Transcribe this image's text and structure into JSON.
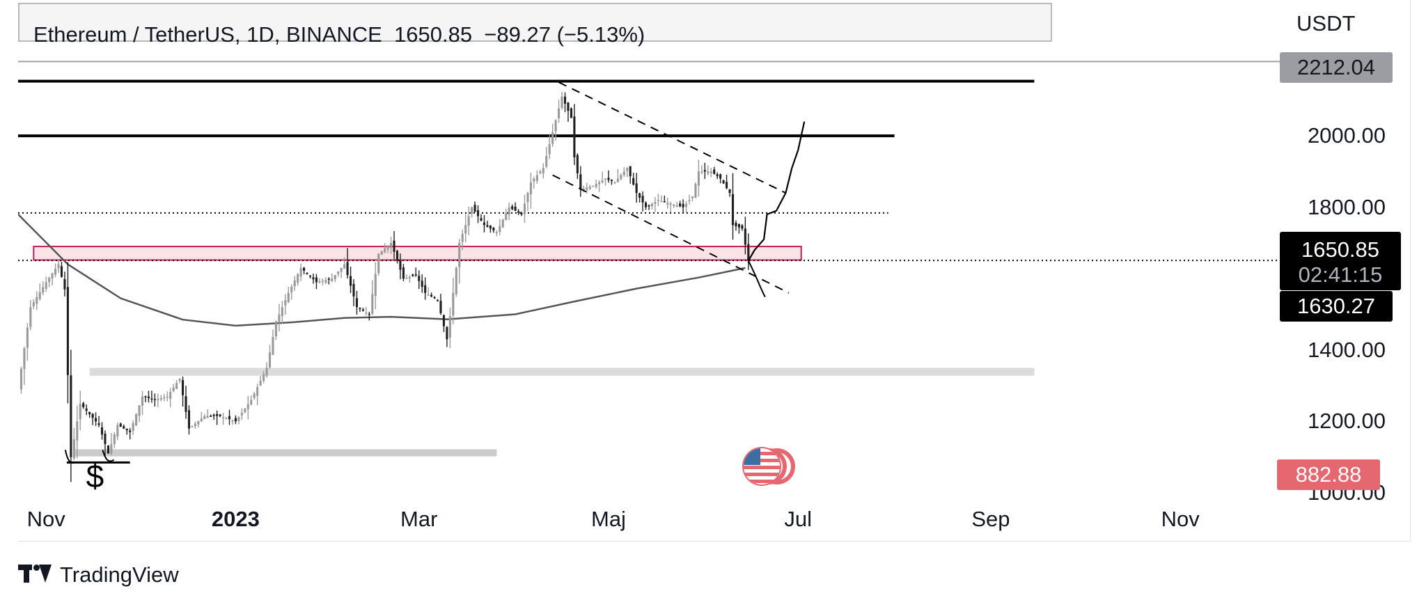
{
  "header": {
    "legend_text": "Ethereum / TetherUS, 1D, BINANCE  1650.85  −89.27 (−5.13%)"
  },
  "chart_data": {
    "type": "candlestick",
    "title": "",
    "xlabel": "",
    "ylabel": "",
    "unit": "USDT",
    "ylim": [
      957,
      2244
    ],
    "x_range": [
      "2022-10-23",
      "2023-12-03"
    ],
    "x_ticks": [
      {
        "date": "2022-11-01",
        "label": "Nov",
        "bold": false
      },
      {
        "date": "2023-01-01",
        "label": "2023",
        "bold": true
      },
      {
        "date": "2023-03-01",
        "label": "Mar",
        "bold": false
      },
      {
        "date": "2023-05-01",
        "label": "Maj",
        "bold": false
      },
      {
        "date": "2023-07-01",
        "label": "Jul",
        "bold": false
      },
      {
        "date": "2023-09-01",
        "label": "Sep",
        "bold": false
      },
      {
        "date": "2023-11-01",
        "label": "Nov",
        "bold": false
      }
    ],
    "y_ticks": [
      {
        "value": 1200,
        "label": "1200.00"
      },
      {
        "value": 1400,
        "label": "1400.00"
      },
      {
        "value": 1800,
        "label": "1800.00"
      },
      {
        "value": 2000,
        "label": "2000.00"
      },
      {
        "value": 1000,
        "label": "1000.00"
      }
    ],
    "price_tags": [
      {
        "value": 2212.04,
        "label": "2212.04",
        "kind": "grey"
      },
      {
        "value": 1650.85,
        "label": "1650.85",
        "countdown": "02:41:15",
        "kind": "last"
      },
      {
        "value": 1630.27,
        "label": "1630.27",
        "kind": "black"
      },
      {
        "value": 882.88,
        "label": "882.88",
        "kind": "red"
      }
    ],
    "price_path": [
      [
        "2022-10-23",
        1290
      ],
      [
        "2022-10-27",
        1520
      ],
      [
        "2022-11-01",
        1590
      ],
      [
        "2022-11-05",
        1640
      ],
      [
        "2022-11-07",
        1570
      ],
      [
        "2022-11-08",
        1330
      ],
      [
        "2022-11-09",
        1100
      ],
      [
        "2022-11-12",
        1250
      ],
      [
        "2022-11-15",
        1220
      ],
      [
        "2022-11-18",
        1190
      ],
      [
        "2022-11-21",
        1110
      ],
      [
        "2022-11-24",
        1190
      ],
      [
        "2022-11-28",
        1170
      ],
      [
        "2022-12-02",
        1270
      ],
      [
        "2022-12-06",
        1260
      ],
      [
        "2022-12-10",
        1270
      ],
      [
        "2022-12-14",
        1320
      ],
      [
        "2022-12-17",
        1180
      ],
      [
        "2022-12-22",
        1215
      ],
      [
        "2022-12-27",
        1215
      ],
      [
        "2023-01-01",
        1200
      ],
      [
        "2023-01-06",
        1260
      ],
      [
        "2023-01-11",
        1350
      ],
      [
        "2023-01-14",
        1480
      ],
      [
        "2023-01-18",
        1560
      ],
      [
        "2023-01-22",
        1630
      ],
      [
        "2023-01-27",
        1590
      ],
      [
        "2023-02-01",
        1600
      ],
      [
        "2023-02-05",
        1640
      ],
      [
        "2023-02-09",
        1520
      ],
      [
        "2023-02-13",
        1500
      ],
      [
        "2023-02-16",
        1670
      ],
      [
        "2023-02-20",
        1700
      ],
      [
        "2023-02-24",
        1600
      ],
      [
        "2023-02-28",
        1610
      ],
      [
        "2023-03-03",
        1560
      ],
      [
        "2023-03-07",
        1540
      ],
      [
        "2023-03-10",
        1430
      ],
      [
        "2023-03-12",
        1560
      ],
      [
        "2023-03-14",
        1700
      ],
      [
        "2023-03-18",
        1800
      ],
      [
        "2023-03-22",
        1750
      ],
      [
        "2023-03-26",
        1730
      ],
      [
        "2023-03-30",
        1800
      ],
      [
        "2023-04-03",
        1780
      ],
      [
        "2023-04-06",
        1870
      ],
      [
        "2023-04-10",
        1910
      ],
      [
        "2023-04-13",
        2010
      ],
      [
        "2023-04-16",
        2110
      ],
      [
        "2023-04-19",
        2050
      ],
      [
        "2023-04-20",
        1940
      ],
      [
        "2023-04-22",
        1850
      ],
      [
        "2023-04-26",
        1860
      ],
      [
        "2023-04-30",
        1880
      ],
      [
        "2023-05-03",
        1870
      ],
      [
        "2023-05-07",
        1910
      ],
      [
        "2023-05-10",
        1840
      ],
      [
        "2023-05-13",
        1800
      ],
      [
        "2023-05-17",
        1820
      ],
      [
        "2023-05-21",
        1810
      ],
      [
        "2023-05-25",
        1800
      ],
      [
        "2023-05-28",
        1830
      ],
      [
        "2023-05-30",
        1900
      ],
      [
        "2023-06-03",
        1900
      ],
      [
        "2023-06-06",
        1880
      ],
      [
        "2023-06-09",
        1840
      ],
      [
        "2023-06-10",
        1750
      ],
      [
        "2023-06-13",
        1740
      ],
      [
        "2023-06-15",
        1650
      ]
    ],
    "moving_average": [
      [
        "2022-10-23",
        1780
      ],
      [
        "2022-11-08",
        1640
      ],
      [
        "2022-11-25",
        1545
      ],
      [
        "2022-12-15",
        1485
      ],
      [
        "2023-01-01",
        1468
      ],
      [
        "2023-01-20",
        1478
      ],
      [
        "2023-02-05",
        1490
      ],
      [
        "2023-02-20",
        1493
      ],
      [
        "2023-03-10",
        1486
      ],
      [
        "2023-04-01",
        1500
      ],
      [
        "2023-04-20",
        1536
      ],
      [
        "2023-05-10",
        1572
      ],
      [
        "2023-05-30",
        1603
      ],
      [
        "2023-06-14",
        1630
      ]
    ],
    "horizontal_levels": [
      {
        "value": 2153,
        "style": "solid-bold",
        "from": "2022-10-23",
        "to": "2023-09-15"
      },
      {
        "value": 2000,
        "style": "solid-bold",
        "from": "2022-10-23",
        "to": "2023-08-01"
      },
      {
        "value": 1784,
        "style": "dotted",
        "from": "2022-10-23",
        "to": "2023-07-30"
      },
      {
        "value": 1651,
        "style": "dotted",
        "from": "2022-10-23",
        "to": "2023-12-03"
      }
    ],
    "zones": [
      {
        "from": "2022-10-28",
        "to": "2023-07-02",
        "top": 1690,
        "bottom": 1652,
        "color": "#c2185b"
      },
      {
        "from": "2022-11-15",
        "to": "2023-09-15",
        "top": 1350,
        "bottom": 1328,
        "color": "#dcdcdc"
      },
      {
        "from": "2022-11-10",
        "to": "2023-03-26",
        "top": 1122,
        "bottom": 1102,
        "color": "#cccccc"
      }
    ],
    "channel_lines": [
      [
        [
          "2023-04-15",
          2150
        ],
        [
          "2023-06-27",
          1840
        ]
      ],
      [
        [
          "2023-04-13",
          1890
        ],
        [
          "2023-06-28",
          1560
        ]
      ]
    ],
    "projection": [
      [
        "2023-06-15",
        1650
      ],
      [
        "2023-06-17",
        1680
      ],
      [
        "2023-06-20",
        1710
      ],
      [
        "2023-06-21",
        1780
      ],
      [
        "2023-06-24",
        1790
      ],
      [
        "2023-06-27",
        1840
      ],
      [
        "2023-06-29",
        1910
      ],
      [
        "2023-07-01",
        1960
      ],
      [
        "2023-07-03",
        2040
      ]
    ],
    "annotations": [
      {
        "type": "text",
        "text": "$",
        "date": "2022-11-17",
        "value": 1040
      }
    ]
  },
  "colors": {
    "candle": "#9a9a9a",
    "candle_dark": "#202020",
    "ma_line": "#555555",
    "accent_red": "#e5676f"
  },
  "branding": {
    "name": "TradingView",
    "badge_icon": "us-coin-icon"
  }
}
